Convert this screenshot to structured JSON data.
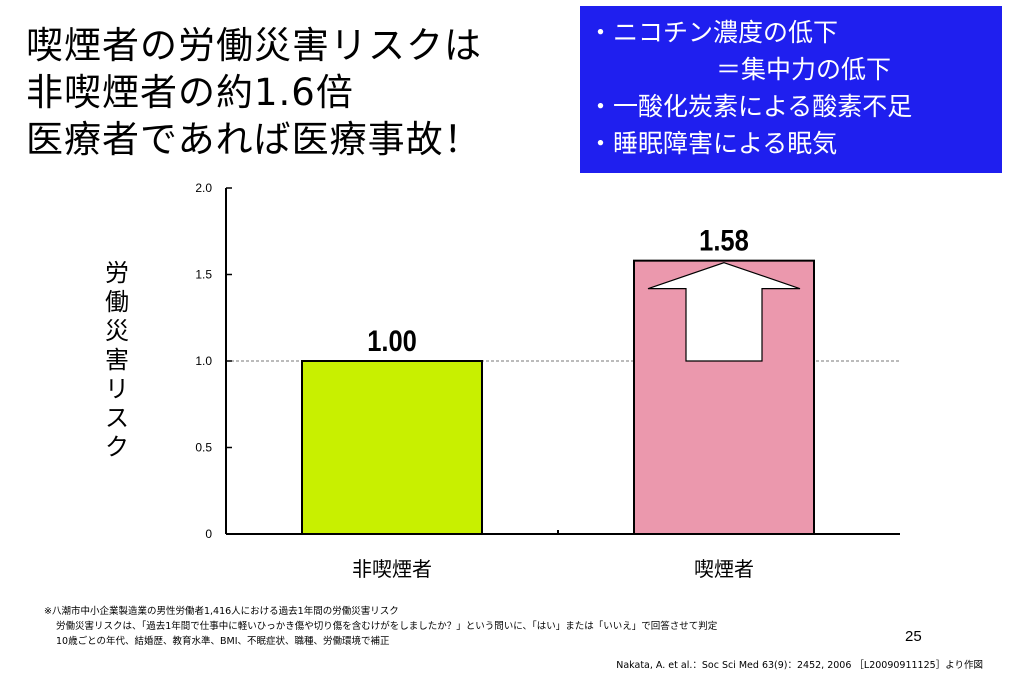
{
  "title": {
    "lines": [
      "喫煙者の労働災害リスクは",
      "非喫煙者の約1.6倍",
      "医療者であれば医療事故！"
    ]
  },
  "notes": {
    "bg_color": "#1f1fef",
    "lines": [
      "・ニコチン濃度の低下",
      "＝集中力の低下",
      "・一酸化炭素による酸素不足",
      "・睡眠障害による眠気"
    ]
  },
  "chart_data": {
    "type": "bar",
    "categories": [
      "非喫煙者",
      "喫煙者"
    ],
    "values": [
      1.0,
      1.58
    ],
    "value_labels": [
      "1.00",
      "1.58"
    ],
    "colors": [
      "#c8f000",
      "#eb98ad"
    ],
    "ylabel": "労働災害リスク",
    "ylim": [
      0,
      2.0
    ],
    "yticks": [
      0,
      0.5,
      1.0,
      1.5,
      2.0
    ],
    "ytick_labels": [
      "0",
      "0.5",
      "1.0",
      "1.5",
      "2.0"
    ],
    "reference_line": 1.0,
    "arrow": {
      "on_category": "喫煙者",
      "from": 1.0,
      "to": 1.58
    },
    "grid": false,
    "legend": "none"
  },
  "footnote": {
    "lines": [
      "※八潮市中小企業製造業の男性労働者1,416人における過去1年間の労働災害リスク",
      "労働災害リスクは、「過去1年間で仕事中に軽いひっかき傷や切り傷を含むけがをしましたか？」という問いに、「はい」または「いいえ」で回答させて判定",
      "10歳ごとの年代、結婚歴、教育水準、BMI、不眠症状、職種、労働環境で補正"
    ]
  },
  "page_number": "25",
  "citation": "Nakata, A. et al.：Soc Sci Med 63(9)：2452, 2006 ［L20090911125］より作図"
}
